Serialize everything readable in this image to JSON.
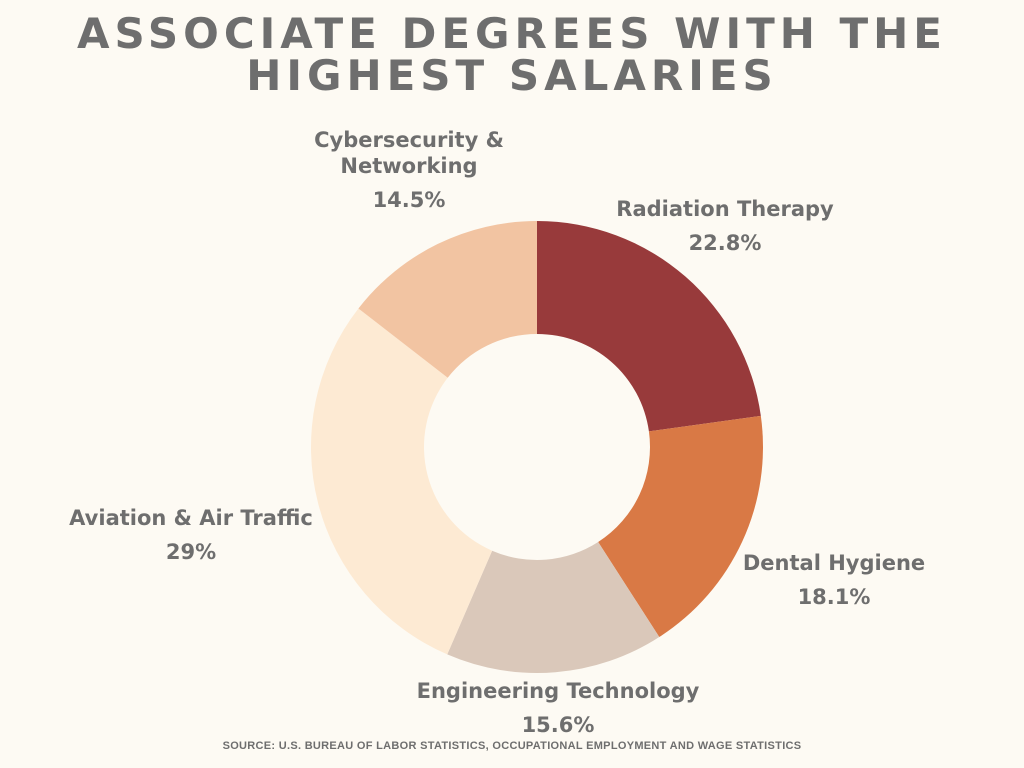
{
  "title_lines": [
    "ASSOCIATE DEGREES WITH THE",
    "HIGHEST SALARIES"
  ],
  "source": "SOURCE: U.S. BUREAU OF LABOR STATISTICS, OCCUPATIONAL EMPLOYMENT AND WAGE STATISTICS",
  "chart_data": {
    "type": "pie",
    "donut": true,
    "title": "ASSOCIATE DEGREES WITH THE HIGHEST SALARIES",
    "slices": [
      {
        "label_lines": [
          "Radiation Therapy"
        ],
        "value": 22.8,
        "value_label": "22.8%",
        "color": "#983a3b"
      },
      {
        "label_lines": [
          "Dental Hygiene"
        ],
        "value": 18.1,
        "value_label": "18.1%",
        "color": "#d97945"
      },
      {
        "label_lines": [
          "Engineering Technology"
        ],
        "value": 15.6,
        "value_label": "15.6%",
        "color": "#dac8ba"
      },
      {
        "label_lines": [
          "Aviation & Air Traffic"
        ],
        "value": 29,
        "value_label": "29%",
        "color": "#fdead3"
      },
      {
        "label_lines": [
          "Cybersecurity &",
          "Networking"
        ],
        "value": 14.5,
        "value_label": "14.5%",
        "color": "#f2c4a2"
      }
    ]
  }
}
